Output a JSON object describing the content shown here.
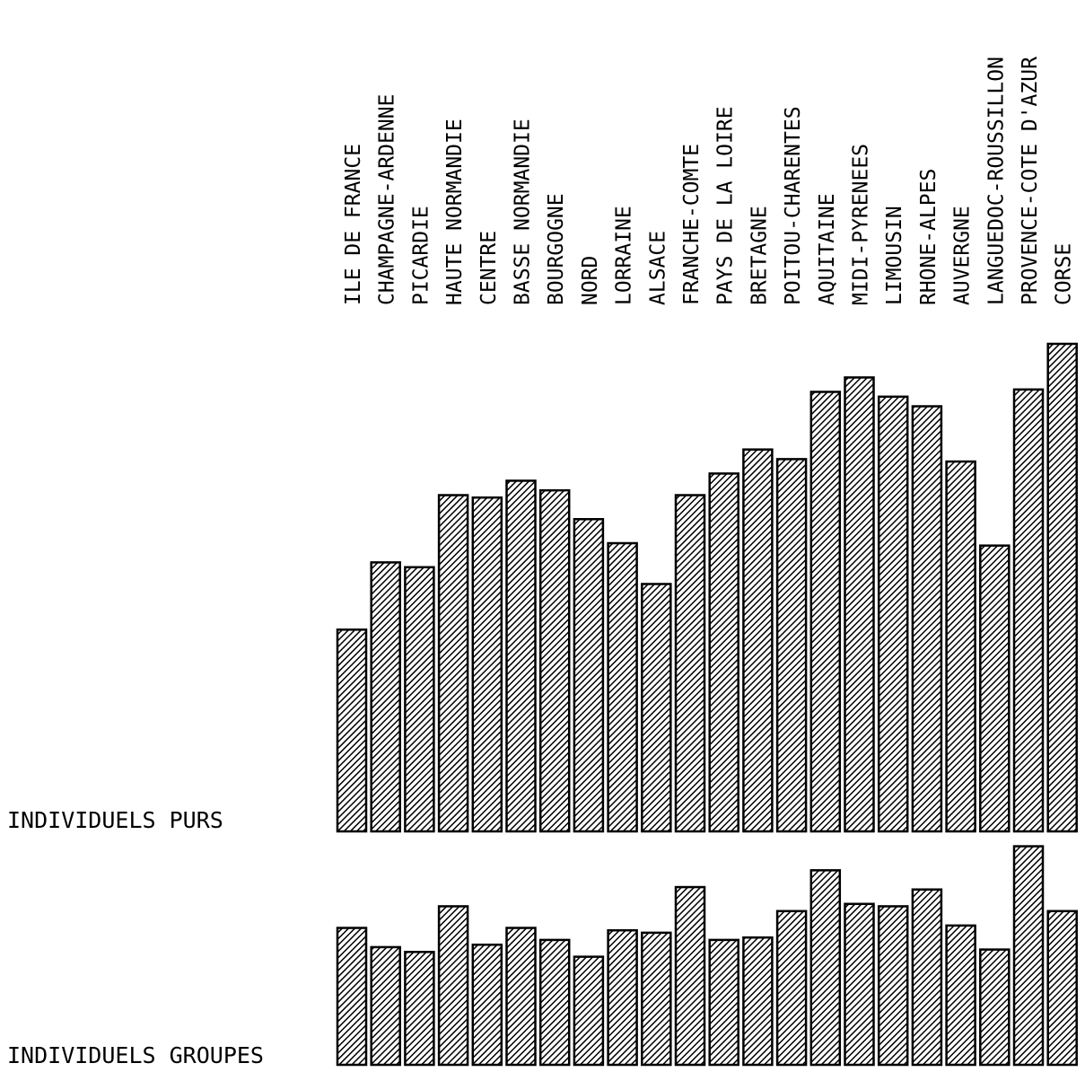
{
  "chart_data": {
    "type": "bar",
    "categories": [
      "ILE DE FRANCE",
      "CHAMPAGNE-ARDENNE",
      "PICARDIE",
      "HAUTE NORMANDIE",
      "CENTRE",
      "BASSE NORMANDIE",
      "BOURGOGNE",
      "NORD",
      "LORRAINE",
      "ALSACE",
      "FRANCHE-COMTE",
      "PAYS DE LA LOIRE",
      "BRETAGNE",
      "POITOU-CHARENTES",
      "AQUITAINE",
      "MIDI-PYRENEES",
      "LIMOUSIN",
      "RHONE-ALPES",
      "AUVERGNE",
      "LANGUEDOC-ROUSSILLON",
      "PROVENCE-COTE D'AZUR",
      "CORSE"
    ],
    "series": [
      {
        "name": "INDIVIDUELS PURS",
        "values": [
          42,
          56,
          55,
          70,
          69.5,
          73,
          71,
          65,
          60,
          51.5,
          70,
          74.5,
          79.5,
          77.5,
          91.5,
          94.5,
          90.5,
          88.5,
          77,
          59.5,
          92,
          101.5
        ]
      },
      {
        "name": "INDIVIDUELS GROUPES",
        "values": [
          28.5,
          24.5,
          23.5,
          33,
          25,
          28.5,
          26,
          22.5,
          28,
          27.5,
          37,
          26,
          26.5,
          32,
          40.5,
          33.5,
          33,
          36.5,
          29,
          24,
          45.5,
          32
        ]
      }
    ],
    "colors": {
      "bar_fill": "#8a8a8a",
      "hatch": "#000000",
      "outline": "#000000",
      "background": "#ffffff"
    },
    "grid": false,
    "legend": "none"
  }
}
